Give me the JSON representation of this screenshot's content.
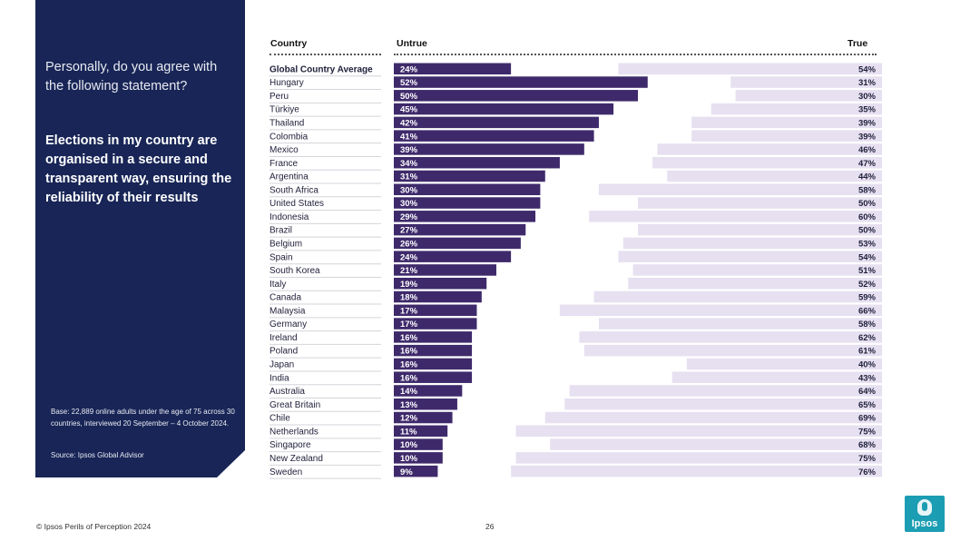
{
  "panel": {
    "question": "Personally, do you agree with the following statement?",
    "statement": "Elections in my country are organised in a secure and transparent way, ensuring the reliability of their results",
    "base": "Base: 22,889 online adults under the age of 75 across 30 countries, interviewed 20 September – 4 October 2024.",
    "source": "Source: Ipsos Global Advisor"
  },
  "headers": {
    "country": "Country",
    "untrue": "Untrue",
    "true": "True"
  },
  "footer": {
    "left": "© Ipsos Perils of Perception 2024",
    "page": "26",
    "logo": "Ipsos"
  },
  "colors": {
    "untrue": "#3e2a6b",
    "true": "#e6e0f1",
    "panel": "#182556",
    "logo": "#1b9db3"
  },
  "chart_data": {
    "type": "bar",
    "orientation": "horizontal",
    "categories": [
      "Global Country Average",
      "Hungary",
      "Peru",
      "Türkiye",
      "Thailand",
      "Colombia",
      "Mexico",
      "France",
      "Argentina",
      "South Africa",
      "United States",
      "Indonesia",
      "Brazil",
      "Belgium",
      "Spain",
      "South Korea",
      "Italy",
      "Canada",
      "Malaysia",
      "Germany",
      "Ireland",
      "Poland",
      "Japan",
      "India",
      "Australia",
      "Great Britain",
      "Chile",
      "Netherlands",
      "Singapore",
      "New Zealand",
      "Sweden"
    ],
    "series": [
      {
        "name": "Untrue",
        "values": [
          24,
          52,
          50,
          45,
          42,
          41,
          39,
          34,
          31,
          30,
          30,
          29,
          27,
          26,
          24,
          21,
          19,
          18,
          17,
          17,
          16,
          16,
          16,
          16,
          14,
          13,
          12,
          11,
          10,
          10,
          9
        ]
      },
      {
        "name": "True",
        "values": [
          54,
          31,
          30,
          35,
          39,
          39,
          46,
          47,
          44,
          58,
          50,
          60,
          50,
          53,
          54,
          51,
          52,
          59,
          66,
          58,
          62,
          61,
          40,
          43,
          64,
          65,
          69,
          75,
          68,
          75,
          76
        ]
      }
    ],
    "unit": "%",
    "xlim": [
      0,
      100
    ],
    "labels": [
      "24%",
      "52%",
      "50%",
      "45%",
      "42%",
      "41%",
      "39%",
      "34%",
      "31%",
      "30%",
      "30%",
      "29%",
      "27%",
      "26%",
      "24%",
      "21%",
      "19%",
      "18%",
      "17%",
      "17%",
      "16%",
      "16%",
      "16%",
      "16%",
      "14%",
      "13%",
      "12%",
      "11%",
      "10%",
      "10%",
      "9%"
    ],
    "true_labels": [
      "54%",
      "31%",
      "30%",
      "35%",
      "39%",
      "39%",
      "46%",
      "47%",
      "44%",
      "58%",
      "50%",
      "60%",
      "50%",
      "53%",
      "54%",
      "51%",
      "52%",
      "59%",
      "66%",
      "58%",
      "62%",
      "61%",
      "40%",
      "43%",
      "64%",
      "65%",
      "69%",
      "75%",
      "68%",
      "75%",
      "76%"
    ]
  }
}
